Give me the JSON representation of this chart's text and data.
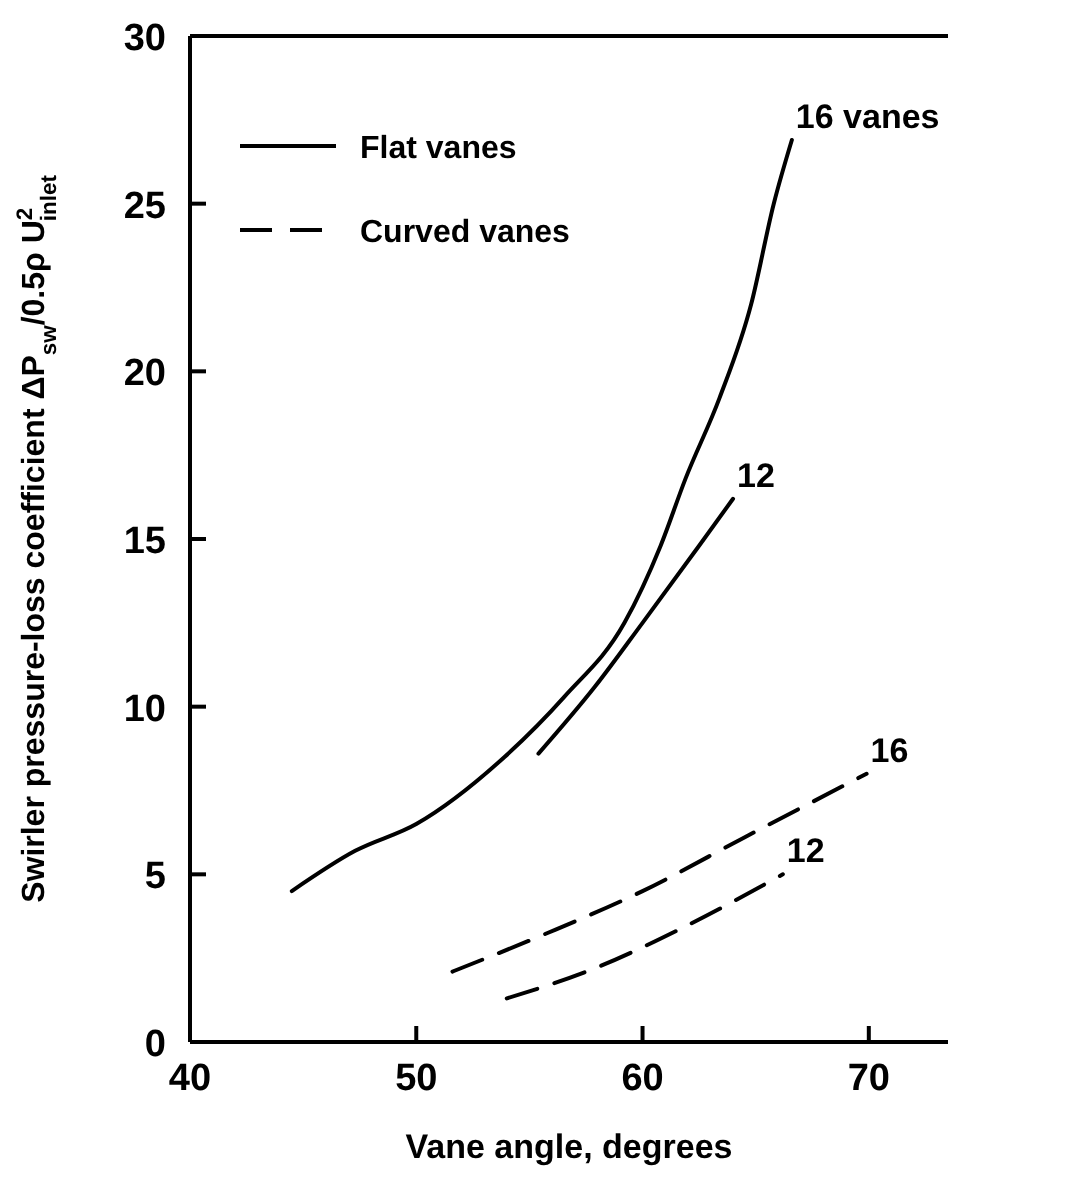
{
  "chart_data": {
    "type": "line",
    "xlabel": "Vane angle, degrees",
    "ylabel": "Swirler pressure-loss coefficient ΔP$_{sw}$/0.5ρ U$^{2}$$_{inlet}$",
    "xlim": [
      40,
      73.5
    ],
    "ylim": [
      0,
      30
    ],
    "xticks": [
      40,
      50,
      60,
      70
    ],
    "yticks": [
      0,
      5,
      10,
      15,
      20,
      25,
      30
    ],
    "grid": false,
    "legend": "top left",
    "series": [
      {
        "name": "Flat vanes",
        "color": "#000000",
        "line_style": "solid",
        "x": [
          44.5,
          47.3,
          50,
          53.9,
          56.55,
          59.2,
          60.8,
          61.9,
          63.4,
          64.8,
          65.8,
          66.6
        ],
        "values": [
          4.5,
          5.7,
          6.5,
          8.5,
          10.3,
          12.5,
          14.8,
          16.8,
          19.2,
          22,
          25,
          26.9
        ]
      },
      {
        "color": "#000000",
        "line_style": "solid",
        "x": [
          55.4,
          57.9,
          60,
          62.5,
          64
        ],
        "values": [
          8.6,
          10.6,
          12.5,
          14.8,
          16.2
        ]
      },
      {
        "name": "Curved vanes",
        "color": "#000000",
        "line_style": "dashed",
        "x": [
          51.6,
          55.8,
          60,
          64.5,
          69.9
        ],
        "values": [
          2.1,
          3.25,
          4.5,
          6.1,
          8
        ]
      },
      {
        "color": "#000000",
        "line_style": "dashed",
        "x": [
          54,
          57.9,
          61.9,
          66.2
        ],
        "values": [
          1.3,
          2.2,
          3.45,
          5
        ]
      }
    ],
    "annotations": [
      {
        "text": "16 vanes",
        "x": 66.6,
        "y": 26.9
      },
      {
        "text": "12",
        "x": 64,
        "y": 16.2
      },
      {
        "text": "16",
        "x": 69.9,
        "y": 8
      },
      {
        "text": "12",
        "x": 66.2,
        "y": 5
      }
    ]
  }
}
